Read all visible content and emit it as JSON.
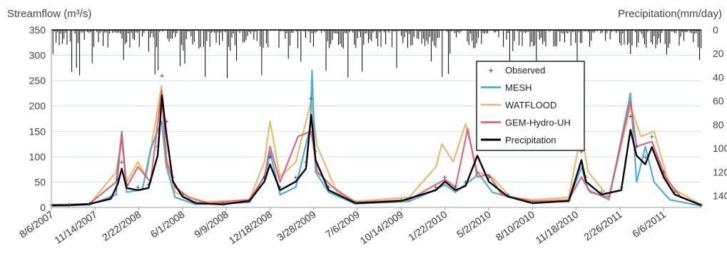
{
  "chart_data": {
    "type": "line",
    "ylabel_left": "Streamflow (m³/s)",
    "ylabel_right": "Precipitation(mm/day)",
    "y_left_ticks": [
      "0",
      "50",
      "100",
      "150",
      "200",
      "250",
      "300",
      "350"
    ],
    "y_right_ticks": [
      "0",
      "20",
      "40",
      "60",
      "80",
      "100",
      "120",
      "140"
    ],
    "ylim_left": [
      0,
      350
    ],
    "ylim_right_inverted": [
      0,
      140
    ],
    "x_date_start": "8/6/2007",
    "x_date_end": "8/31/2011",
    "x_tick_labels": [
      "8/6/2007",
      "11/14/2007",
      "2/22/2008",
      "6/1/2008",
      "9/9/2008",
      "12/18/2008",
      "3/28/2009",
      "7/6/2009",
      "10/14/2009",
      "1/22/2010",
      "5/2/2010",
      "8/10/2010",
      "11/18/2010",
      "2/26/2011",
      "6/6/2011"
    ],
    "grid": true,
    "legend_position": "inside-right",
    "series": [
      {
        "name": "Observed",
        "color": "#1f3864",
        "style": "markers",
        "points": [
          [
            "2007-08-06",
            5
          ],
          [
            "2007-09-15",
            5
          ],
          [
            "2007-11-01",
            8
          ],
          [
            "2007-12-20",
            20
          ],
          [
            "2008-01-05",
            55
          ],
          [
            "2008-01-14",
            90
          ],
          [
            "2008-01-25",
            45
          ],
          [
            "2008-02-20",
            40
          ],
          [
            "2008-03-15",
            45
          ],
          [
            "2008-04-05",
            120
          ],
          [
            "2008-04-15",
            260
          ],
          [
            "2008-04-25",
            170
          ],
          [
            "2008-05-10",
            60
          ],
          [
            "2008-06-01",
            25
          ],
          [
            "2008-07-01",
            10
          ],
          [
            "2008-09-01",
            7
          ],
          [
            "2008-11-01",
            15
          ],
          [
            "2008-12-05",
            60
          ],
          [
            "2008-12-18",
            100
          ],
          [
            "2009-01-10",
            40
          ],
          [
            "2009-02-15",
            60
          ],
          [
            "2009-03-10",
            90
          ],
          [
            "2009-03-22",
            215
          ],
          [
            "2009-04-01",
            110
          ],
          [
            "2009-05-01",
            40
          ],
          [
            "2009-07-01",
            10
          ],
          [
            "2009-10-14",
            15
          ],
          [
            "2010-01-01",
            40
          ],
          [
            "2010-01-22",
            60
          ],
          [
            "2010-02-15",
            40
          ],
          [
            "2010-03-10",
            50
          ],
          [
            "2010-04-06",
            120
          ],
          [
            "2010-05-02",
            60
          ],
          [
            "2010-06-15",
            25
          ],
          [
            "2010-08-10",
            10
          ],
          [
            "2010-11-01",
            15
          ],
          [
            "2010-11-30",
            110
          ],
          [
            "2010-12-10",
            60
          ],
          [
            "2011-01-15",
            30
          ],
          [
            "2011-03-01",
            40
          ],
          [
            "2011-03-22",
            180
          ],
          [
            "2011-04-05",
            120
          ],
          [
            "2011-04-25",
            100
          ],
          [
            "2011-05-10",
            140
          ],
          [
            "2011-06-06",
            70
          ],
          [
            "2011-07-01",
            30
          ],
          [
            "2011-08-31",
            5
          ]
        ]
      },
      {
        "name": "MESH",
        "color": "#3aa6d8",
        "style": "line",
        "points": [
          [
            "2007-08-06",
            3
          ],
          [
            "2007-11-01",
            5
          ],
          [
            "2008-01-01",
            25
          ],
          [
            "2008-01-14",
            150
          ],
          [
            "2008-01-25",
            30
          ],
          [
            "2008-03-01",
            35
          ],
          [
            "2008-03-20",
            115
          ],
          [
            "2008-04-14",
            170
          ],
          [
            "2008-04-25",
            80
          ],
          [
            "2008-05-15",
            20
          ],
          [
            "2008-07-01",
            6
          ],
          [
            "2008-11-01",
            10
          ],
          [
            "2008-12-10",
            70
          ],
          [
            "2008-12-18",
            110
          ],
          [
            "2009-01-10",
            25
          ],
          [
            "2009-02-15",
            40
          ],
          [
            "2009-03-20",
            160
          ],
          [
            "2009-03-24",
            270
          ],
          [
            "2009-04-01",
            70
          ],
          [
            "2009-05-01",
            30
          ],
          [
            "2009-07-01",
            7
          ],
          [
            "2009-11-01",
            12
          ],
          [
            "2010-01-01",
            35
          ],
          [
            "2010-01-22",
            45
          ],
          [
            "2010-02-15",
            30
          ],
          [
            "2010-04-01",
            60
          ],
          [
            "2010-04-06",
            70
          ],
          [
            "2010-05-10",
            30
          ],
          [
            "2010-08-01",
            10
          ],
          [
            "2010-11-01",
            12
          ],
          [
            "2010-11-30",
            80
          ],
          [
            "2010-12-15",
            35
          ],
          [
            "2011-02-01",
            15
          ],
          [
            "2011-03-22",
            225
          ],
          [
            "2011-04-05",
            50
          ],
          [
            "2011-04-25",
            120
          ],
          [
            "2011-05-15",
            50
          ],
          [
            "2011-06-20",
            15
          ],
          [
            "2011-08-31",
            3
          ]
        ]
      },
      {
        "name": "WATFLOOD",
        "color": "#e6b55c",
        "style": "line",
        "points": [
          [
            "2007-08-06",
            4
          ],
          [
            "2007-11-01",
            6
          ],
          [
            "2008-01-01",
            70
          ],
          [
            "2008-01-14",
            130
          ],
          [
            "2008-01-25",
            50
          ],
          [
            "2008-02-20",
            90
          ],
          [
            "2008-03-10",
            60
          ],
          [
            "2008-04-14",
            240
          ],
          [
            "2008-04-25",
            100
          ],
          [
            "2008-05-15",
            30
          ],
          [
            "2008-07-01",
            10
          ],
          [
            "2008-11-01",
            15
          ],
          [
            "2008-12-05",
            90
          ],
          [
            "2008-12-18",
            170
          ],
          [
            "2009-01-10",
            60
          ],
          [
            "2009-02-15",
            90
          ],
          [
            "2009-03-22",
            210
          ],
          [
            "2009-04-05",
            120
          ],
          [
            "2009-04-25",
            80
          ],
          [
            "2009-05-20",
            30
          ],
          [
            "2009-07-01",
            12
          ],
          [
            "2009-11-01",
            20
          ],
          [
            "2010-01-01",
            80
          ],
          [
            "2010-01-15",
            125
          ],
          [
            "2010-02-10",
            90
          ],
          [
            "2010-03-10",
            165
          ],
          [
            "2010-04-06",
            70
          ],
          [
            "2010-05-10",
            60
          ],
          [
            "2010-06-20",
            20
          ],
          [
            "2010-08-10",
            15
          ],
          [
            "2010-11-01",
            20
          ],
          [
            "2010-11-30",
            150
          ],
          [
            "2010-12-15",
            70
          ],
          [
            "2011-02-01",
            20
          ],
          [
            "2011-03-22",
            200
          ],
          [
            "2011-04-15",
            140
          ],
          [
            "2011-05-15",
            150
          ],
          [
            "2011-06-20",
            40
          ],
          [
            "2011-08-31",
            5
          ]
        ]
      },
      {
        "name": "GEM-Hydro-UH",
        "color": "#e2566b",
        "style": "line",
        "points": [
          [
            "2007-08-06",
            5
          ],
          [
            "2007-11-01",
            7
          ],
          [
            "2008-01-01",
            50
          ],
          [
            "2008-01-14",
            145
          ],
          [
            "2008-01-25",
            40
          ],
          [
            "2008-02-20",
            80
          ],
          [
            "2008-03-20",
            50
          ],
          [
            "2008-04-14",
            230
          ],
          [
            "2008-04-25",
            90
          ],
          [
            "2008-05-15",
            40
          ],
          [
            "2008-06-15",
            20
          ],
          [
            "2008-08-01",
            8
          ],
          [
            "2008-11-01",
            15
          ],
          [
            "2008-12-05",
            60
          ],
          [
            "2008-12-18",
            120
          ],
          [
            "2009-01-10",
            50
          ],
          [
            "2009-02-20",
            140
          ],
          [
            "2009-03-22",
            150
          ],
          [
            "2009-04-05",
            70
          ],
          [
            "2009-05-10",
            40
          ],
          [
            "2009-07-01",
            10
          ],
          [
            "2009-11-01",
            15
          ],
          [
            "2010-01-01",
            45
          ],
          [
            "2010-01-22",
            55
          ],
          [
            "2010-02-15",
            40
          ],
          [
            "2010-03-15",
            155
          ],
          [
            "2010-04-06",
            60
          ],
          [
            "2010-05-02",
            65
          ],
          [
            "2010-06-01",
            25
          ],
          [
            "2010-08-10",
            12
          ],
          [
            "2010-11-01",
            15
          ],
          [
            "2010-11-30",
            60
          ],
          [
            "2010-12-20",
            30
          ],
          [
            "2011-02-01",
            20
          ],
          [
            "2011-03-22",
            210
          ],
          [
            "2011-04-05",
            120
          ],
          [
            "2011-05-10",
            130
          ],
          [
            "2011-06-10",
            60
          ],
          [
            "2011-07-15",
            20
          ],
          [
            "2011-08-31",
            5
          ]
        ]
      },
      {
        "name": "Precipitation",
        "color": "#000000",
        "style": "line-and-bars"
      }
    ]
  }
}
